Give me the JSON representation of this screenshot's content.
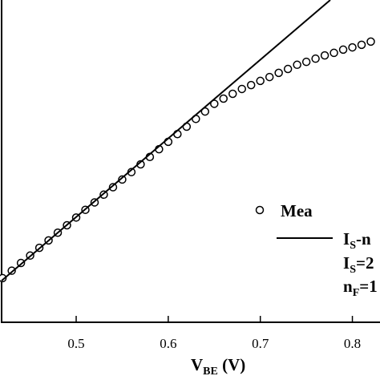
{
  "chart_data": {
    "type": "scatter-line",
    "x_label": {
      "main": "V",
      "sub": "BE",
      "rest": " (V)"
    },
    "xlim": [
      0.419,
      0.83
    ],
    "ylim": [
      0,
      100
    ],
    "xticks": [
      0.5,
      0.6,
      0.7,
      0.8
    ],
    "series": [
      {
        "name": "Mea",
        "kind": "markers",
        "color": "#000000",
        "x": [
          0.42,
          0.43,
          0.44,
          0.45,
          0.46,
          0.47,
          0.48,
          0.49,
          0.5,
          0.51,
          0.52,
          0.53,
          0.54,
          0.55,
          0.56,
          0.57,
          0.58,
          0.59,
          0.6,
          0.61,
          0.62,
          0.63,
          0.64,
          0.65,
          0.66,
          0.67,
          0.68,
          0.69,
          0.7,
          0.71,
          0.72,
          0.73,
          0.74,
          0.75,
          0.76,
          0.77,
          0.78,
          0.79,
          0.8,
          0.81,
          0.82
        ],
        "values": [
          13.7,
          16.0,
          18.4,
          20.7,
          23.1,
          25.4,
          27.8,
          30.1,
          32.5,
          34.9,
          37.2,
          39.6,
          41.9,
          44.3,
          46.6,
          49.0,
          51.3,
          53.7,
          56.0,
          58.4,
          60.7,
          63.1,
          65.4,
          67.8,
          69.4,
          70.9,
          72.4,
          73.6,
          74.9,
          76.1,
          77.4,
          78.6,
          79.9,
          80.8,
          81.8,
          82.8,
          83.6,
          84.6,
          85.3,
          86.1,
          87.1
        ]
      },
      {
        "name": {
          "main": "I",
          "sub": "S",
          "rest": "-n"
        },
        "kind": "line",
        "color": "#000000",
        "x": [
          0.419,
          0.776
        ],
        "values": [
          12.9,
          100
        ]
      }
    ],
    "annotations": [
      {
        "main": "I",
        "sub": "S",
        "rest": "=2"
      },
      {
        "main": "n",
        "sub": "F",
        "rest": "=1"
      }
    ]
  }
}
